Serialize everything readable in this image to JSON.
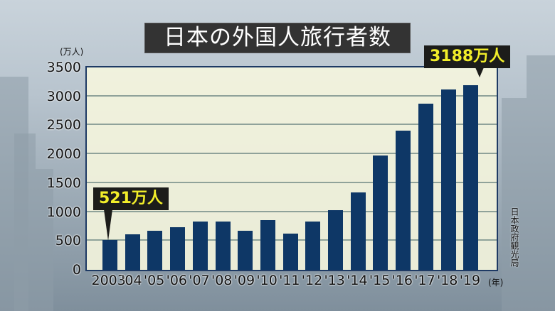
{
  "title": "日本の外国人旅行者数",
  "unit_label": "(万人)",
  "x_unit_label": "(年)",
  "source": "日本政府観光局",
  "callouts": {
    "first": "521万人",
    "last": "3188万人"
  },
  "colors": {
    "bar": "#0e3766",
    "callout_bg": "#1c1c1a",
    "callout_text": "#f2ee2a",
    "title_bg": "#333333",
    "plot_bg": "#f7f7de"
  },
  "chart_data": {
    "type": "bar",
    "title": "日本の外国人旅行者数",
    "xlabel": "(年)",
    "ylabel": "(万人)",
    "ylim": [
      0,
      3500
    ],
    "yticks": [
      0,
      500,
      1000,
      1500,
      2000,
      2500,
      3000,
      3500
    ],
    "grid": true,
    "categories": [
      "2003",
      "'04",
      "'05",
      "'06",
      "'07",
      "'08",
      "'09",
      "'10",
      "'11",
      "'12",
      "'13",
      "'14",
      "'15",
      "'16",
      "'17",
      "'18",
      "'19"
    ],
    "values": [
      521,
      614,
      673,
      733,
      835,
      835,
      679,
      861,
      622,
      836,
      1036,
      1341,
      1974,
      2404,
      2869,
      3119,
      3188
    ],
    "annotations": [
      {
        "category": "2003",
        "text": "521万人"
      },
      {
        "category": "'19",
        "text": "3188万人"
      }
    ],
    "source": "日本政府観光局"
  }
}
